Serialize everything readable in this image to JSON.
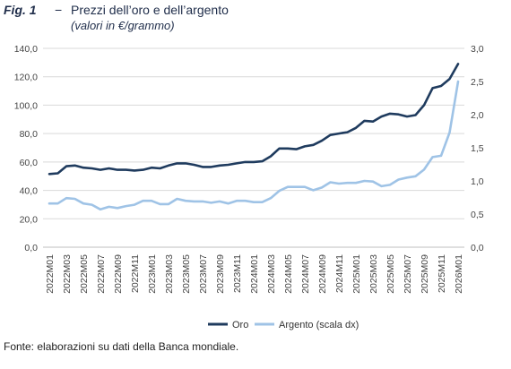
{
  "header": {
    "fig_label": "Fig. 1",
    "dash": "−",
    "title": "Prezzi dell’oro e dell’argento",
    "subtitle": "(valori in €/grammo)"
  },
  "source": "Fonte: elaborazioni su dati della Banca mondiale.",
  "colors": {
    "oro": "#1f3b5e",
    "argento": "#9fc3e6",
    "grid": "#d9d9d9",
    "axis": "#bfbfbf"
  },
  "chart_data": {
    "type": "line",
    "x": [
      "2022M01",
      "2022M02",
      "2022M03",
      "2022M04",
      "2022M05",
      "2022M06",
      "2022M07",
      "2022M08",
      "2022M09",
      "2022M10",
      "2022M11",
      "2022M12",
      "2023M01",
      "2023M02",
      "2023M03",
      "2023M04",
      "2023M05",
      "2023M06",
      "2023M07",
      "2023M08",
      "2023M09",
      "2023M10",
      "2023M11",
      "2023M12",
      "2024M01",
      "2024M02",
      "2024M03",
      "2024M04",
      "2024M05",
      "2024M06",
      "2024M07",
      "2024M08",
      "2024M09",
      "2024M10",
      "2024M11",
      "2024M12",
      "2025M01",
      "2025M02",
      "2025M03",
      "2025M04",
      "2025M05",
      "2025M06",
      "2025M07",
      "2025M08",
      "2025M09",
      "2025M10",
      "2025M11",
      "2025M12",
      "2026M01"
    ],
    "x_tick_labels": [
      "2022M01",
      "2022M03",
      "2022M05",
      "2022M07",
      "2022M09",
      "2022M11",
      "2023M01",
      "2023M03",
      "2023M05",
      "2023M07",
      "2023M09",
      "2023M11",
      "2024M01",
      "2024M03",
      "2024M05",
      "2024M07",
      "2024M09",
      "2024M11",
      "2025M01",
      "2025M03",
      "2025M05",
      "2025M07",
      "2025M09",
      "2025M11",
      "2026M01"
    ],
    "y_left": {
      "ylim": [
        0,
        140
      ],
      "ticks": [
        "0,0",
        "20,0",
        "40,0",
        "60,0",
        "80,0",
        "100,0",
        "120,0",
        "140,0"
      ]
    },
    "y_right": {
      "ylim": [
        0,
        3.0
      ],
      "ticks": [
        "0,0",
        "0,5",
        "1,0",
        "1,5",
        "2,0",
        "2,5",
        "3,0"
      ]
    },
    "grid": true,
    "legend_position": "bottom",
    "series": [
      {
        "name": "Oro",
        "axis": "left",
        "values": [
          51.5,
          52,
          57,
          57.5,
          56,
          55.5,
          54.5,
          55.5,
          54.5,
          54.5,
          54,
          54.5,
          56,
          55.5,
          57.5,
          59,
          59,
          58,
          56.5,
          56.5,
          57.5,
          58,
          59,
          60,
          60,
          60.5,
          64,
          69.5,
          69.5,
          69,
          71,
          72,
          75,
          79,
          80,
          81,
          84,
          89,
          88.5,
          92,
          94,
          93.5,
          92,
          93,
          100,
          112,
          113.5,
          118.5,
          129
        ]
      },
      {
        "name": "Argento (scala dx)",
        "axis": "right",
        "values": [
          0.66,
          0.66,
          0.74,
          0.73,
          0.66,
          0.64,
          0.57,
          0.61,
          0.59,
          0.62,
          0.64,
          0.7,
          0.7,
          0.65,
          0.65,
          0.73,
          0.7,
          0.69,
          0.69,
          0.67,
          0.69,
          0.66,
          0.7,
          0.7,
          0.68,
          0.68,
          0.74,
          0.85,
          0.91,
          0.91,
          0.91,
          0.86,
          0.9,
          0.98,
          0.96,
          0.97,
          0.97,
          1.0,
          0.99,
          0.92,
          0.94,
          1.02,
          1.05,
          1.07,
          1.17,
          1.36,
          1.38,
          1.73,
          2.5
        ]
      }
    ]
  }
}
